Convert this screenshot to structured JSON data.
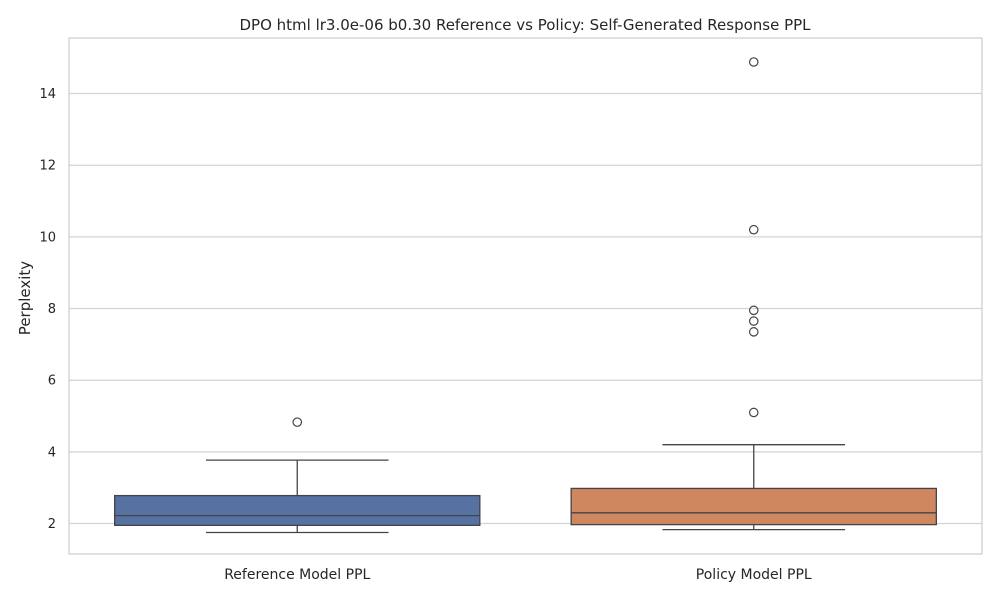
{
  "chart_data": {
    "type": "box",
    "title": "DPO html lr3.0e-06 b0.30 Reference vs Policy: Self-Generated Response PPL",
    "xlabel": "",
    "ylabel": "Perplexity",
    "ylim": [
      1.15,
      15.55
    ],
    "yticks": [
      2,
      4,
      6,
      8,
      10,
      12,
      14
    ],
    "grid": true,
    "legend": "none",
    "categories": [
      "Reference Model PPL",
      "Policy Model PPL"
    ],
    "boxes": [
      {
        "whisker_low": 1.75,
        "q1": 1.95,
        "median": 2.22,
        "q3": 2.78,
        "whisker_high": 3.77,
        "outliers": [
          4.83
        ],
        "color": "#5572a3"
      },
      {
        "whisker_low": 1.83,
        "q1": 1.97,
        "median": 2.3,
        "q3": 2.98,
        "whisker_high": 4.2,
        "outliers": [
          5.1,
          7.35,
          7.65,
          7.95,
          10.2,
          14.88
        ],
        "color": "#cf8760"
      }
    ]
  }
}
